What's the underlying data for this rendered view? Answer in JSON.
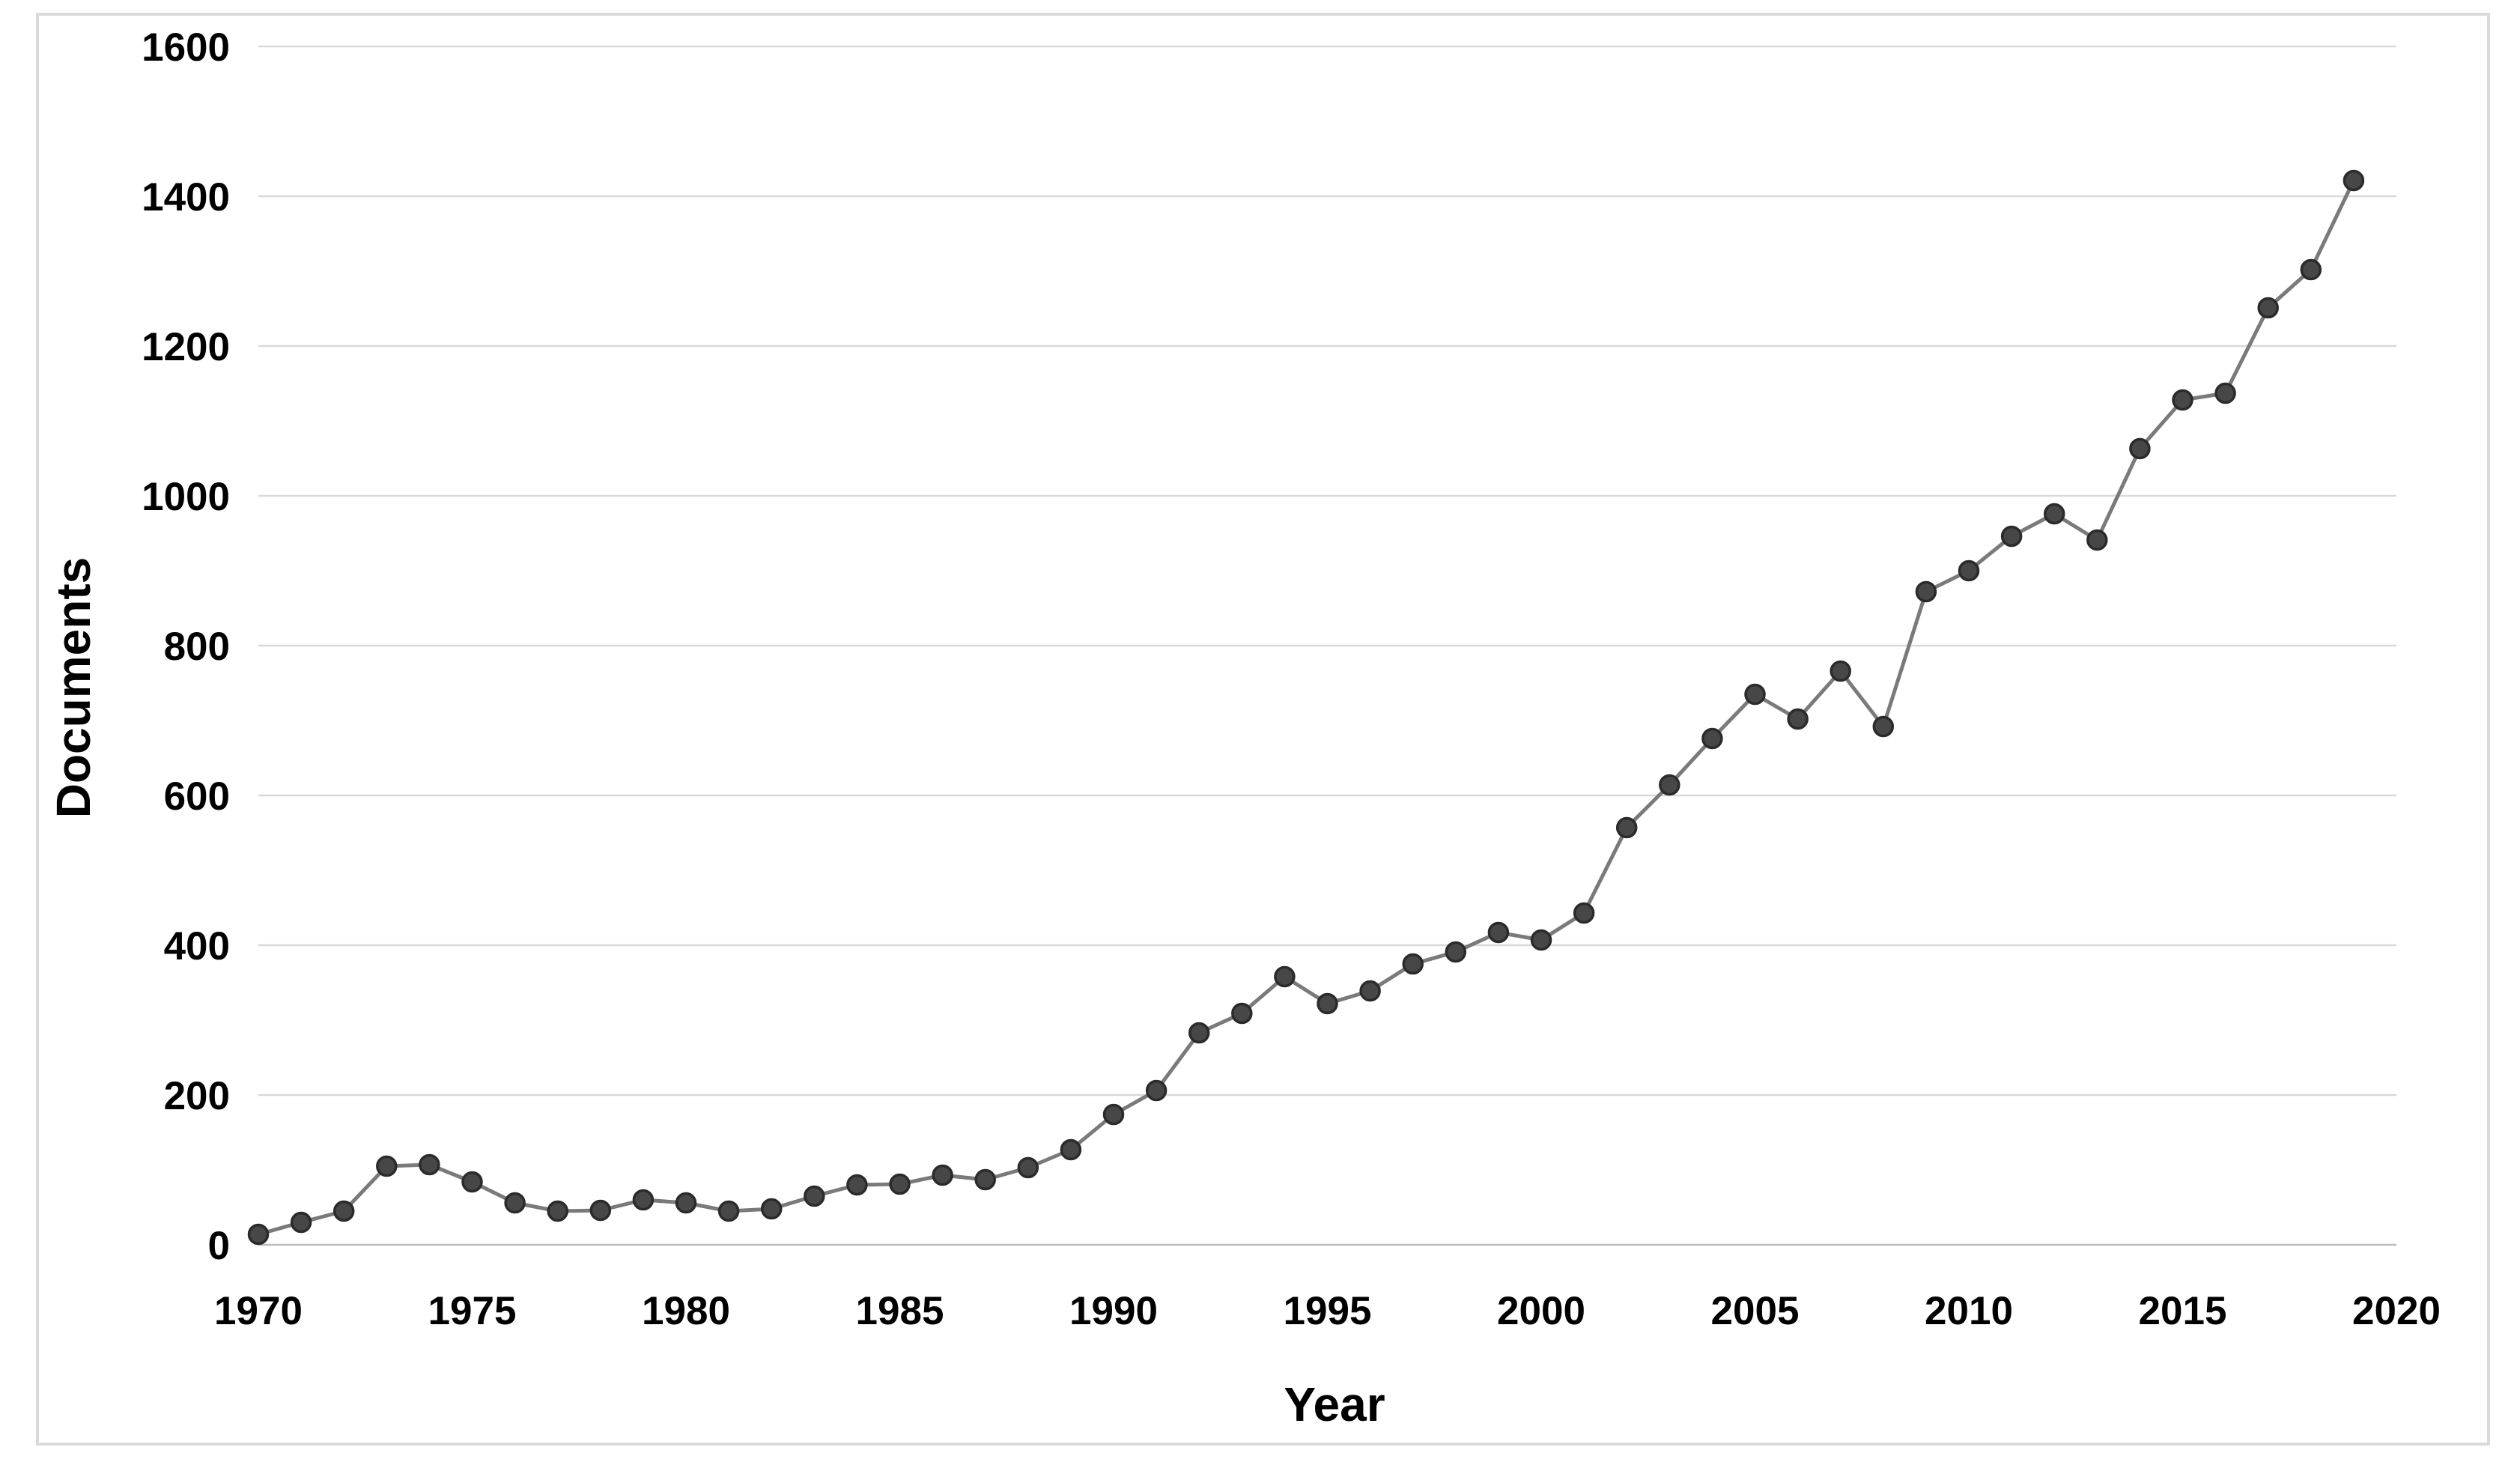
{
  "chart_data": {
    "type": "line",
    "xlabel": "Year",
    "ylabel": "Documents",
    "x": [
      1970,
      1971,
      1972,
      1973,
      1974,
      1975,
      1976,
      1977,
      1978,
      1979,
      1980,
      1981,
      1982,
      1983,
      1984,
      1985,
      1986,
      1987,
      1988,
      1989,
      1990,
      1991,
      1992,
      1993,
      1994,
      1995,
      1996,
      1997,
      1998,
      1999,
      2000,
      2001,
      2002,
      2003,
      2004,
      2005,
      2006,
      2007,
      2008,
      2009,
      2010,
      2011,
      2012,
      2013,
      2014,
      2015,
      2016,
      2017,
      2018,
      2019
    ],
    "values": [
      14,
      30,
      45,
      105,
      107,
      84,
      56,
      45,
      46,
      60,
      56,
      45,
      48,
      65,
      80,
      81,
      93,
      87,
      103,
      127,
      174,
      206,
      283,
      309,
      358,
      322,
      339,
      375,
      391,
      417,
      407,
      443,
      557,
      614,
      676,
      735,
      702,
      766,
      692,
      872,
      900,
      946,
      976,
      941,
      1063,
      1128,
      1137,
      1251,
      1302,
      1421
    ],
    "ylim": [
      0,
      1600
    ],
    "xlim": [
      1970,
      2020
    ],
    "y_ticks": [
      0,
      200,
      400,
      600,
      800,
      1000,
      1200,
      1400,
      1600
    ],
    "x_ticks": [
      1970,
      1975,
      1980,
      1985,
      1990,
      1995,
      2000,
      2005,
      2010,
      2015,
      2020
    ],
    "grid": "horizontal",
    "legend": "none",
    "colors": {
      "series_line": "#7a7a7a",
      "marker_fill": "#474747",
      "marker_stroke": "#2b2b2b",
      "gridline": "#d9d9d9",
      "axis_line": "#bcbcbc",
      "text": "#000000"
    }
  }
}
